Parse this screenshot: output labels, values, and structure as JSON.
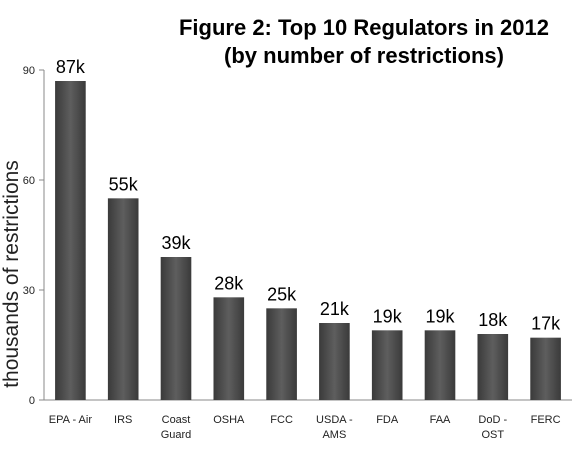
{
  "chart_data": {
    "type": "bar",
    "title_lines": [
      "Figure 2: Top 10 Regulators in 2012",
      "(by number of restrictions)"
    ],
    "xlabel": "",
    "ylabel": "thousands of restrictions",
    "ylim": [
      0,
      90
    ],
    "yticks": [
      0,
      30,
      60,
      90
    ],
    "grid": false,
    "legend": "none",
    "bar_color": "#4d4d4d",
    "categories": [
      [
        "EPA - Air"
      ],
      [
        "IRS"
      ],
      [
        "Coast",
        "Guard"
      ],
      [
        "OSHA"
      ],
      [
        "FCC"
      ],
      [
        "USDA -",
        "AMS"
      ],
      [
        "FDA"
      ],
      [
        "FAA"
      ],
      [
        "DoD -",
        "OST"
      ],
      [
        "FERC"
      ]
    ],
    "values": [
      87,
      55,
      39,
      28,
      25,
      21,
      19,
      19,
      18,
      17
    ],
    "data_labels": [
      "87k",
      "55k",
      "39k",
      "28k",
      "25k",
      "21k",
      "19k",
      "19k",
      "18k",
      "17k"
    ]
  }
}
